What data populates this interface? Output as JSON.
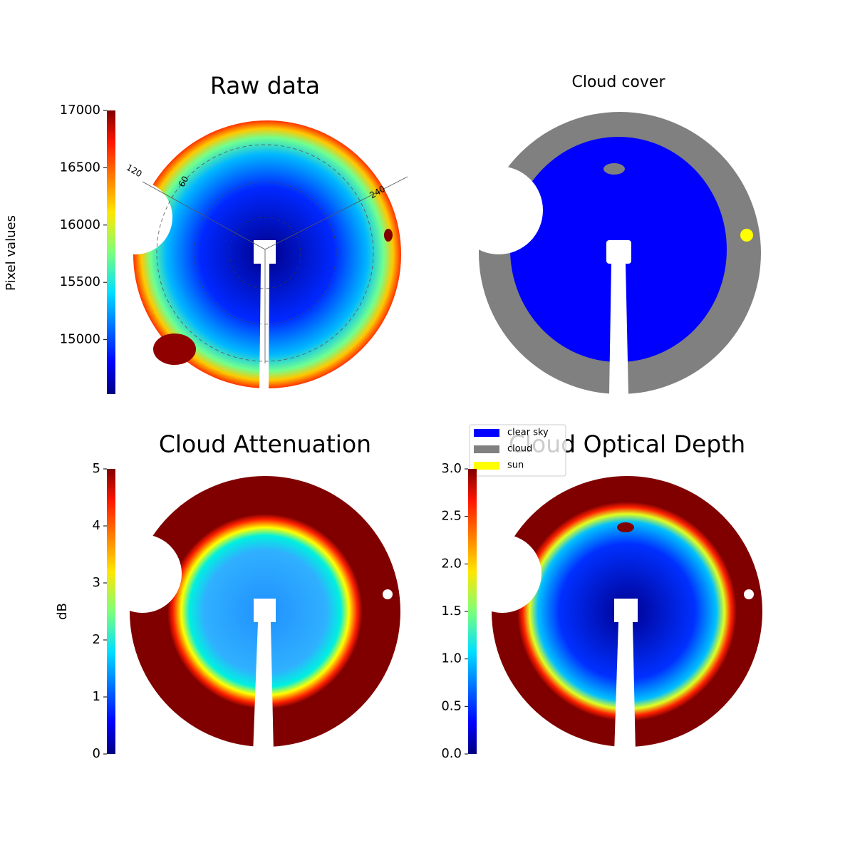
{
  "chart_data": [
    {
      "type": "image",
      "title": "Raw data",
      "colorbar_label": "Pixel values",
      "colormap": "jet",
      "ylim": [
        14525,
        17000
      ],
      "yticks": [
        15000,
        15500,
        16000,
        16500,
        17000
      ],
      "annotations": [
        "120",
        "60",
        "240"
      ]
    },
    {
      "type": "image",
      "title": "Cloud cover",
      "series": [
        {
          "name": "clear sky",
          "color": "#0000ff"
        },
        {
          "name": "cloud",
          "color": "#808080"
        },
        {
          "name": "sun",
          "color": "#ffff00"
        }
      ]
    },
    {
      "type": "image",
      "title": "Cloud Attenuation",
      "colorbar_label": "dB",
      "colormap": "jet",
      "ylim": [
        0,
        5
      ],
      "yticks": [
        0,
        1,
        2,
        3,
        4,
        5
      ]
    },
    {
      "type": "image",
      "title": "Cloud Optical Depth",
      "colormap": "jet",
      "ylim": [
        0,
        3
      ],
      "yticks": [
        {
          "value": 0,
          "label": "0.0"
        },
        0.5,
        {
          "value": 1,
          "label": "1.0"
        },
        1.5,
        {
          "value": 2,
          "label": "2.0"
        },
        2.5,
        {
          "value": 3,
          "label": "3.0"
        }
      ]
    }
  ]
}
